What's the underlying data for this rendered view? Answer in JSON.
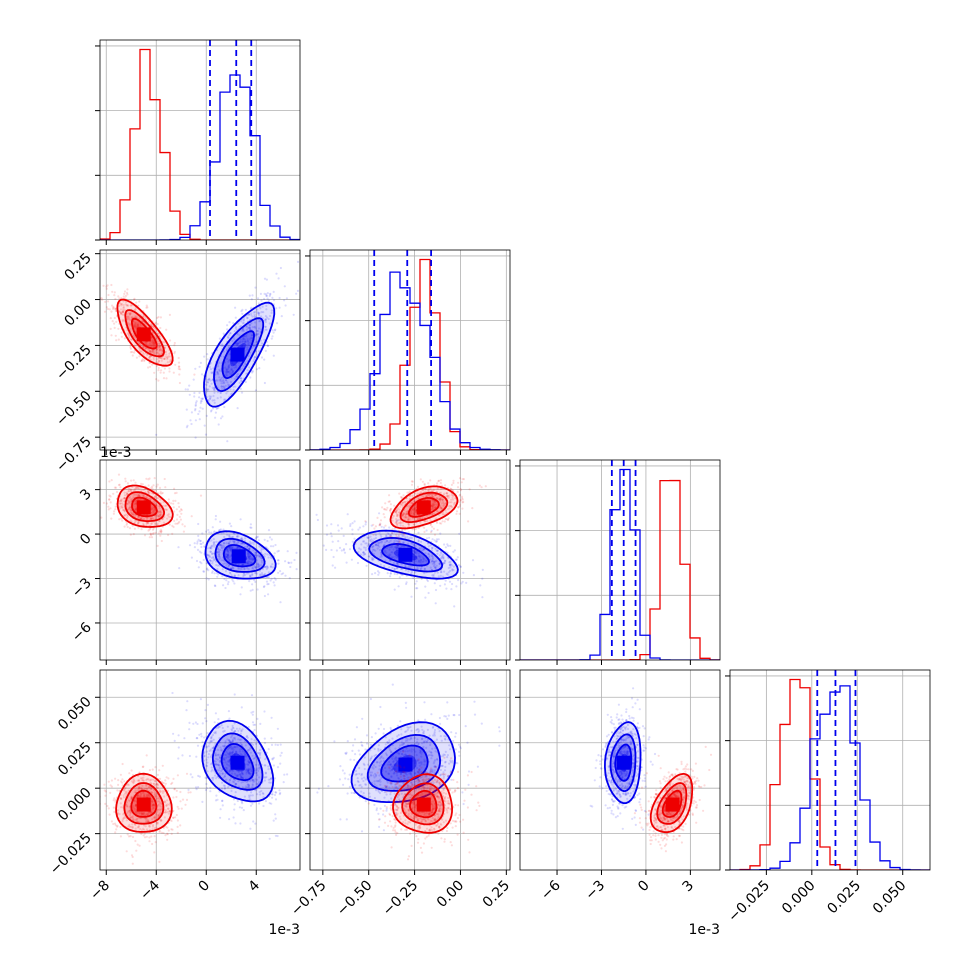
{
  "chart_data": {
    "type": "corner",
    "colors": {
      "red": "#ee0000",
      "blue": "#0000ee"
    },
    "grid": true,
    "params": [
      {
        "range": [
          -8.5,
          7.5
        ],
        "ticks": [
          -8,
          -4,
          0,
          4
        ],
        "tick_labels": [
          "−8",
          "−4",
          "0",
          "4"
        ],
        "offset_label": "1e-3",
        "red": {
          "dist": "normal",
          "mean": -4.6,
          "sd": 1.1
        },
        "blue": {
          "dist": "normal",
          "mean": 2.3,
          "sd": 1.4
        },
        "quantile_lines": [
          0.3,
          2.4,
          3.6
        ]
      },
      {
        "range": [
          -0.82,
          0.27
        ],
        "ticks": [
          -0.75,
          -0.5,
          -0.25,
          0.0,
          0.25
        ],
        "tick_labels": [
          "−0.75",
          "−0.50",
          "−0.25",
          "0.00",
          "0.25"
        ],
        "offset_label": "",
        "red": {
          "dist": "normal",
          "mean": -0.2,
          "sd": 0.08
        },
        "blue": {
          "dist": "normal",
          "mean": -0.3,
          "sd": 0.13
        },
        "quantile_lines": [
          -0.47,
          -0.29,
          -0.16
        ]
      },
      {
        "range": [
          -8.5,
          5.0
        ],
        "ticks": [
          -6,
          -3,
          0,
          3
        ],
        "tick_labels": [
          "−6",
          "−3",
          "0",
          "3"
        ],
        "offset_label": "1e-3",
        "red": {
          "dist": "normal",
          "mean": 1.8,
          "sd": 0.7
        },
        "blue": {
          "dist": "normal",
          "mean": -1.5,
          "sd": 0.7
        },
        "quantile_lines": [
          -2.3,
          -1.5,
          -0.7
        ]
      },
      {
        "range": [
          -0.045,
          0.065
        ],
        "ticks": [
          -0.025,
          0.0,
          0.025,
          0.05
        ],
        "tick_labels": [
          "−0.025",
          "0.000",
          "0.025",
          "0.050"
        ],
        "offset_label": "",
        "red": {
          "dist": "normal",
          "mean": -0.009,
          "sd": 0.008
        },
        "blue": {
          "dist": "normal",
          "mean": 0.013,
          "sd": 0.011
        },
        "quantile_lines": [
          0.003,
          0.013,
          0.024
        ]
      }
    ],
    "joint_clusters": {
      "1,0": {
        "red": {
          "center": [
            -5.0,
            -0.19
          ],
          "sd": [
            1.1,
            0.09
          ],
          "corr": -0.75
        },
        "blue": {
          "center": [
            2.5,
            -0.3
          ],
          "sd": [
            1.4,
            0.14
          ],
          "corr": 0.75
        }
      },
      "2,0": {
        "red": {
          "center": [
            -5.0,
            1.8
          ],
          "sd": [
            1.1,
            0.7
          ],
          "corr": -0.3
        },
        "blue": {
          "center": [
            2.6,
            -1.5
          ],
          "sd": [
            1.4,
            0.8
          ],
          "corr": -0.3
        }
      },
      "2,1": {
        "red": {
          "center": [
            -0.2,
            1.8
          ],
          "sd": [
            0.09,
            0.7
          ],
          "corr": 0.45
        },
        "blue": {
          "center": [
            -0.3,
            -1.4
          ],
          "sd": [
            0.14,
            0.8
          ],
          "corr": -0.5
        }
      },
      "3,0": {
        "red": {
          "center": [
            -5.0,
            -0.009
          ],
          "sd": [
            1.1,
            0.008
          ],
          "corr": 0.0
        },
        "blue": {
          "center": [
            2.5,
            0.014
          ],
          "sd": [
            1.4,
            0.011
          ],
          "corr": -0.3
        }
      },
      "3,1": {
        "red": {
          "center": [
            -0.2,
            -0.009
          ],
          "sd": [
            0.08,
            0.008
          ],
          "corr": 0.0
        },
        "blue": {
          "center": [
            -0.3,
            0.013
          ],
          "sd": [
            0.14,
            0.011
          ],
          "corr": 0.3
        }
      },
      "3,2": {
        "red": {
          "center": [
            1.8,
            -0.009
          ],
          "sd": [
            0.7,
            0.008
          ],
          "corr": 0.45
        },
        "blue": {
          "center": [
            -1.5,
            0.014
          ],
          "sd": [
            0.6,
            0.011
          ],
          "corr": 0.1
        }
      }
    }
  }
}
